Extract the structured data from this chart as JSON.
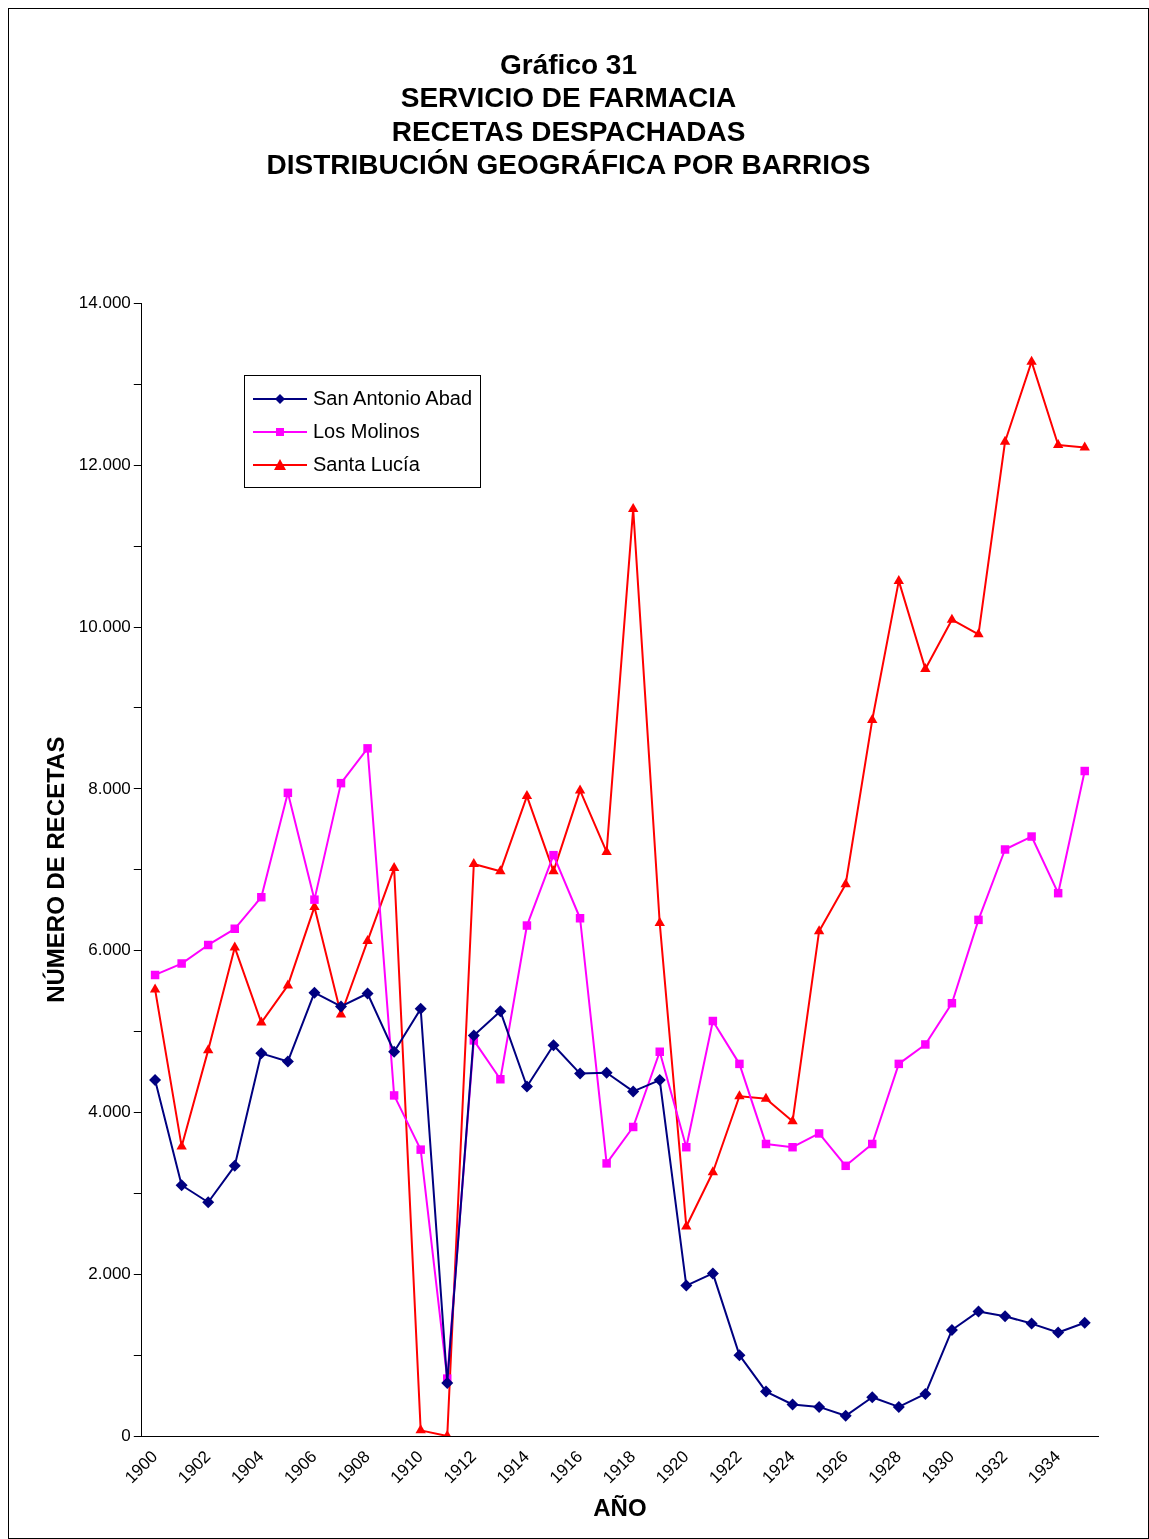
{
  "chart_data": {
    "type": "line",
    "title": "Gráfico 31\nSERVICIO DE FARMACIA\nRECETAS DESPACHADAS\nDISTRIBUCIÓN GEOGRÁFICA POR BARRIOS",
    "xlabel": "AÑO",
    "ylabel": "NÚMERO DE RECETAS",
    "categories": [
      "1900",
      null,
      "1902",
      null,
      "1904",
      null,
      "1906",
      null,
      "1908",
      null,
      "1910",
      null,
      "1912",
      null,
      "1914",
      null,
      "1916",
      null,
      "1918",
      null,
      "1920",
      null,
      "1922",
      null,
      "1924",
      null,
      "1926",
      null,
      "1928",
      null,
      "1930",
      null,
      "1932",
      null,
      "1934",
      null
    ],
    "ylim": [
      0,
      14000
    ],
    "yticks": [
      {
        "value": 0,
        "label": "0"
      },
      {
        "value": 1000,
        "label": null
      },
      {
        "value": 2000,
        "label": "2.000"
      },
      {
        "value": 3000,
        "label": null
      },
      {
        "value": 4000,
        "label": "4.000"
      },
      {
        "value": 5000,
        "label": null
      },
      {
        "value": 6000,
        "label": "6.000"
      },
      {
        "value": 7000,
        "label": null
      },
      {
        "value": 8000,
        "label": "8.000"
      },
      {
        "value": 9000,
        "label": null
      },
      {
        "value": 10000,
        "label": "10.000"
      },
      {
        "value": 11000,
        "label": null
      },
      {
        "value": 12000,
        "label": "12.000"
      },
      {
        "value": 13000,
        "label": null
      },
      {
        "value": 14000,
        "label": "14.000"
      }
    ],
    "grid": false,
    "legend": "top left",
    "line_style": "solid",
    "series": [
      {
        "name": "San Antonio Abad",
        "color": "#000080",
        "marker": "diamond",
        "values": [
          4400,
          3100,
          2890,
          3340,
          4730,
          4630,
          5480,
          5310,
          5470,
          4750,
          5280,
          655,
          4950,
          5250,
          4320,
          4830,
          4480,
          4490,
          4260,
          4400,
          1860,
          2010,
          1000,
          550,
          390,
          360,
          250,
          480,
          360,
          520,
          1310,
          1540,
          1480,
          1390,
          1280,
          1400
        ]
      },
      {
        "name": "Los Molinos",
        "color": "#ff00ff",
        "marker": "square",
        "values": [
          5700,
          5840,
          6070,
          6270,
          6660,
          7950,
          6630,
          8070,
          8500,
          4210,
          3540,
          710,
          4890,
          4410,
          6310,
          7180,
          6400,
          3370,
          3820,
          4750,
          3570,
          5130,
          4600,
          3610,
          3570,
          3740,
          3340,
          3610,
          4600,
          4840,
          5350,
          6380,
          7250,
          7410,
          6710,
          8220
        ]
      },
      {
        "name": "Santa Lucía",
        "color": "#ff0000",
        "marker": "triangle",
        "values": [
          5520,
          3580,
          4770,
          6040,
          5110,
          5570,
          6540,
          5210,
          6120,
          7020,
          70,
          0,
          7070,
          6980,
          7910,
          6980,
          7980,
          7220,
          11460,
          6340,
          2590,
          3260,
          4200,
          4170,
          3890,
          6240,
          6820,
          8850,
          10570,
          9480,
          10090,
          9910,
          12290,
          13280,
          12250,
          12220
        ]
      }
    ]
  }
}
